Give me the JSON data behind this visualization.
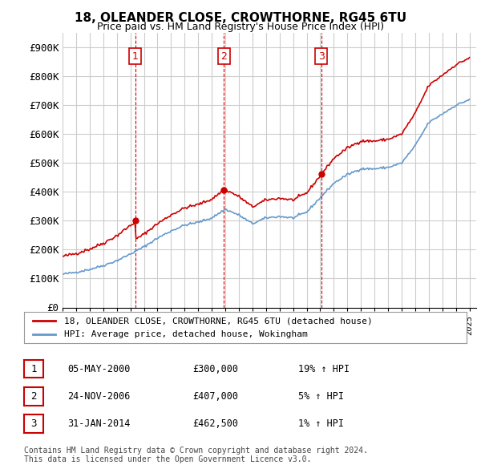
{
  "title": "18, OLEANDER CLOSE, CROWTHORNE, RG45 6TU",
  "subtitle": "Price paid vs. HM Land Registry's House Price Index (HPI)",
  "ylabel_ticks": [
    "£0",
    "£100K",
    "£200K",
    "£300K",
    "£400K",
    "£500K",
    "£600K",
    "£700K",
    "£800K",
    "£900K"
  ],
  "ytick_values": [
    0,
    100000,
    200000,
    300000,
    400000,
    500000,
    600000,
    700000,
    800000,
    900000
  ],
  "ylim": [
    0,
    950000
  ],
  "sales": [
    {
      "date_num": 2000.35,
      "price": 300000,
      "label": "1"
    },
    {
      "date_num": 2006.9,
      "price": 407000,
      "label": "2"
    },
    {
      "date_num": 2014.08,
      "price": 462500,
      "label": "3"
    }
  ],
  "vline_dates": [
    2000.35,
    2006.9,
    2014.08
  ],
  "legend_label_red": "18, OLEANDER CLOSE, CROWTHORNE, RG45 6TU (detached house)",
  "legend_label_blue": "HPI: Average price, detached house, Wokingham",
  "table_rows": [
    {
      "num": "1",
      "date": "05-MAY-2000",
      "price": "£300,000",
      "hpi": "19% ↑ HPI"
    },
    {
      "num": "2",
      "date": "24-NOV-2006",
      "price": "£407,000",
      "hpi": "5% ↑ HPI"
    },
    {
      "num": "3",
      "date": "31-JAN-2014",
      "price": "£462,500",
      "hpi": "1% ↑ HPI"
    }
  ],
  "footer": "Contains HM Land Registry data © Crown copyright and database right 2024.\nThis data is licensed under the Open Government Licence v3.0.",
  "red_color": "#cc0000",
  "blue_color": "#6699cc",
  "vline_color": "#cc0000",
  "grid_color": "#cccccc",
  "bg_color": "#ffffff"
}
